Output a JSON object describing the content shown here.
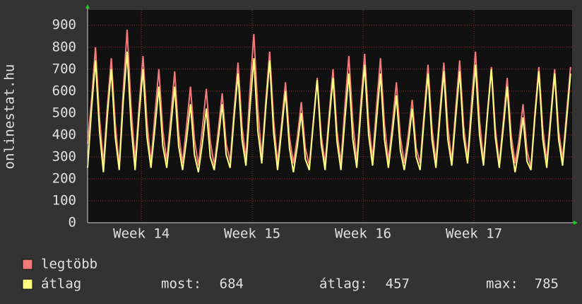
{
  "chart_data": {
    "type": "line",
    "y_label": "onlinestat.hu",
    "xlim": [
      0,
      30.6
    ],
    "ylim": [
      0,
      970
    ],
    "yticks": [
      0,
      100,
      200,
      300,
      400,
      500,
      600,
      700,
      800,
      900
    ],
    "xticks": [
      {
        "value": 3.4,
        "label": "Week 14"
      },
      {
        "value": 10.4,
        "label": "Week 15"
      },
      {
        "value": 17.4,
        "label": "Week 16"
      },
      {
        "value": 24.4,
        "label": "Week 17"
      }
    ],
    "grid": true,
    "x": [
      0,
      0.25,
      0.5,
      0.75,
      1,
      1.25,
      1.5,
      1.75,
      2,
      2.25,
      2.5,
      2.75,
      3,
      3.25,
      3.5,
      3.75,
      4,
      4.25,
      4.5,
      4.75,
      5,
      5.25,
      5.5,
      5.75,
      6,
      6.25,
      6.5,
      6.75,
      7,
      7.25,
      7.5,
      7.75,
      8,
      8.25,
      8.5,
      8.75,
      9,
      9.25,
      9.5,
      9.75,
      10,
      10.25,
      10.5,
      10.75,
      11,
      11.25,
      11.5,
      11.75,
      12,
      12.25,
      12.5,
      12.75,
      13,
      13.25,
      13.5,
      13.75,
      14,
      14.25,
      14.5,
      14.75,
      15,
      15.25,
      15.5,
      15.75,
      16,
      16.25,
      16.5,
      16.75,
      17,
      17.25,
      17.5,
      17.75,
      18,
      18.25,
      18.5,
      18.75,
      19,
      19.25,
      19.5,
      19.75,
      20,
      20.25,
      20.5,
      20.75,
      21,
      21.25,
      21.5,
      21.75,
      22,
      22.25,
      22.5,
      22.75,
      23,
      23.25,
      23.5,
      23.75,
      24,
      24.25,
      24.5,
      24.75,
      25,
      25.25,
      25.5,
      25.75,
      26,
      26.25,
      26.5,
      26.75,
      27,
      27.25,
      27.5,
      27.75,
      28,
      28.25,
      28.5,
      28.75,
      29,
      29.25,
      29.5,
      29.75,
      30,
      30.25,
      30.5
    ],
    "series": [
      {
        "name": "legtöbb",
        "color": "#f47a7a",
        "values": [
          360,
          560,
          800,
          480,
          270,
          530,
          750,
          450,
          260,
          600,
          880,
          520,
          280,
          530,
          760,
          460,
          270,
          490,
          700,
          420,
          280,
          480,
          690,
          410,
          270,
          440,
          620,
          380,
          260,
          430,
          610,
          370,
          260,
          420,
          590,
          360,
          280,
          510,
          730,
          440,
          290,
          600,
          860,
          520,
          300,
          550,
          780,
          470,
          270,
          450,
          640,
          390,
          270,
          390,
          550,
          340,
          260,
          460,
          660,
          400,
          270,
          490,
          700,
          420,
          270,
          530,
          760,
          460,
          280,
          540,
          770,
          460,
          290,
          530,
          750,
          450,
          280,
          450,
          640,
          390,
          270,
          400,
          560,
          340,
          270,
          500,
          720,
          430,
          280,
          510,
          730,
          440,
          280,
          520,
          740,
          440,
          290,
          550,
          780,
          470,
          280,
          500,
          710,
          430,
          270,
          460,
          660,
          400,
          270,
          380,
          540,
          330,
          250,
          500,
          710,
          430,
          280,
          490,
          700,
          420,
          290,
          500,
          710
        ]
      },
      {
        "name": "átlag",
        "color": "#ffff80",
        "values": [
          250,
          520,
          740,
          420,
          230,
          490,
          700,
          390,
          240,
          550,
          780,
          440,
          240,
          490,
          700,
          390,
          250,
          430,
          620,
          350,
          250,
          430,
          620,
          350,
          240,
          380,
          540,
          310,
          230,
          360,
          520,
          300,
          240,
          380,
          540,
          310,
          250,
          480,
          680,
          380,
          260,
          520,
          750,
          420,
          270,
          520,
          740,
          410,
          240,
          420,
          600,
          340,
          230,
          350,
          500,
          290,
          240,
          450,
          650,
          360,
          240,
          460,
          660,
          370,
          240,
          470,
          680,
          380,
          250,
          500,
          720,
          400,
          260,
          470,
          680,
          380,
          250,
          410,
          580,
          330,
          240,
          360,
          520,
          300,
          240,
          470,
          680,
          380,
          250,
          480,
          690,
          380,
          260,
          480,
          690,
          390,
          270,
          500,
          720,
          400,
          260,
          490,
          700,
          390,
          250,
          430,
          620,
          350,
          230,
          340,
          480,
          280,
          240,
          480,
          690,
          380,
          250,
          470,
          680,
          380,
          260,
          470,
          680
        ]
      }
    ],
    "stats": [
      {
        "label": "most:",
        "value": 684
      },
      {
        "label": "átlag:",
        "value": 457
      },
      {
        "label": "max:",
        "value": 785
      }
    ]
  }
}
